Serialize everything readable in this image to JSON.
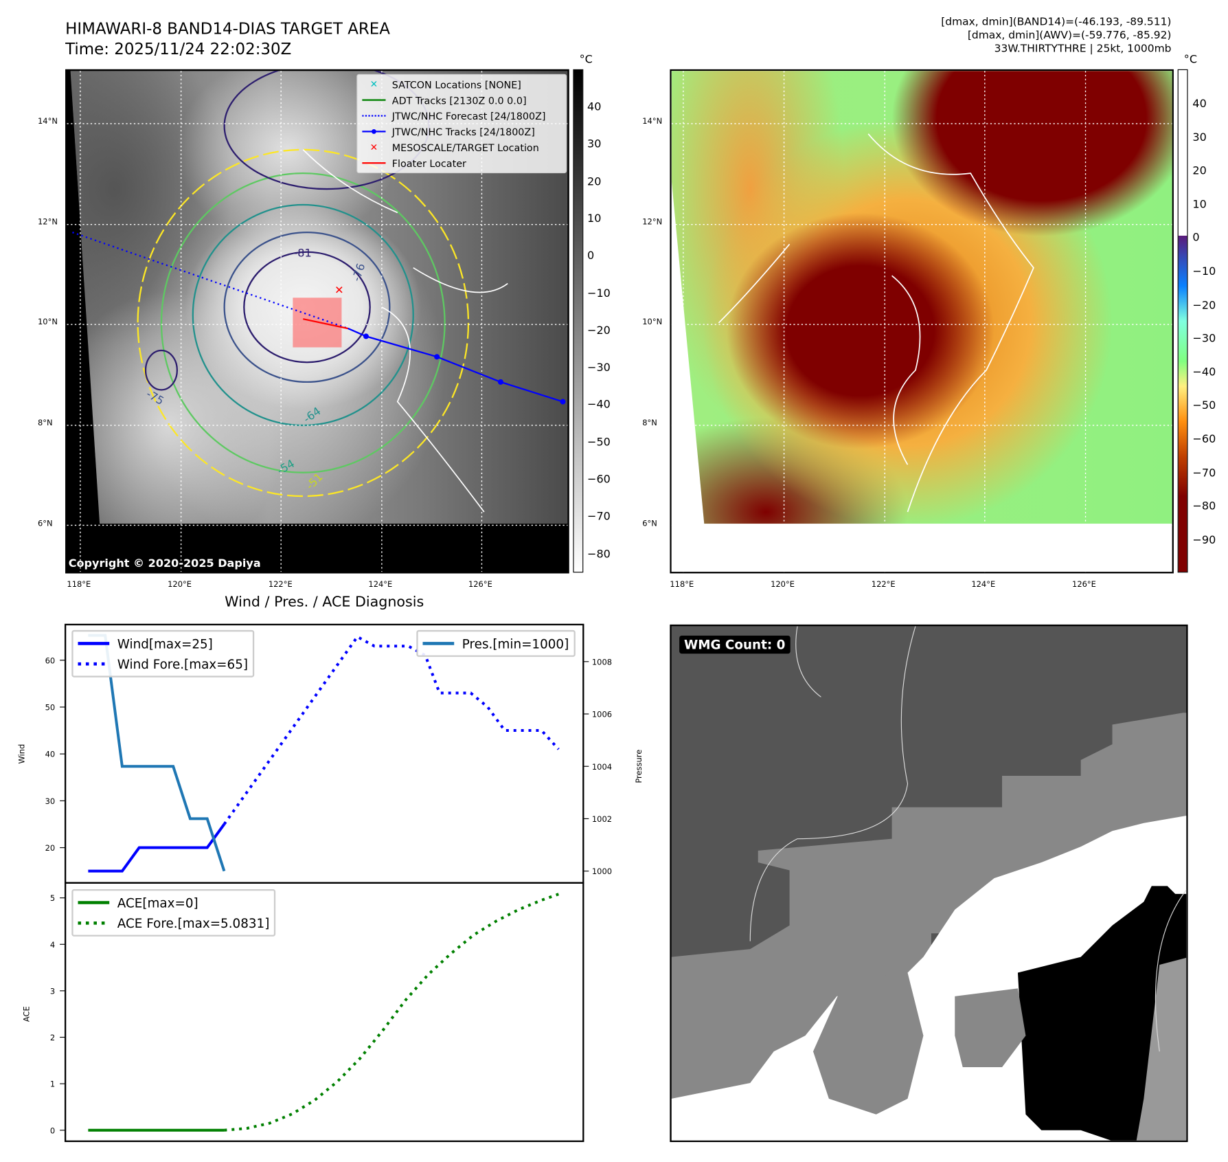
{
  "header": {
    "title": "HIMAWARI-8 BAND14-DIAS TARGET AREA",
    "time": "Time: 2025/11/24 22:02:30Z",
    "stats_band14": "[dmax, dmin](BAND14)=(-46.193, -89.511)",
    "stats_awv": "[dmax, dmin](AWV)=(-59.776, -85.92)",
    "storm_info": "33W.THIRTYTHRE | 25kt, 1000mb"
  },
  "maps": {
    "lat_labels": [
      "14°N",
      "12°N",
      "10°N",
      "8°N",
      "6°N"
    ],
    "lon_labels": [
      "118°E",
      "120°E",
      "122°E",
      "124°E",
      "126°E"
    ],
    "unit": "°C",
    "copyright": "Copyright © 2020-2025 Dapiya",
    "left_colorbar_ticks": [
      "40",
      "30",
      "20",
      "10",
      "0",
      "−10",
      "−20",
      "−30",
      "−40",
      "−50",
      "−60",
      "−70",
      "−80"
    ],
    "right_colorbar_ticks": [
      "40",
      "30",
      "20",
      "10",
      "0",
      "−10",
      "−20",
      "−30",
      "−40",
      "−50",
      "−60",
      "−70",
      "−80",
      "−90"
    ],
    "contour_labels": [
      "-81",
      "-76",
      "-64",
      "-54",
      "-51",
      "-75"
    ],
    "legend": [
      {
        "label": "SATCON Locations [NONE]",
        "icon": "x-marker",
        "color": "#00bfbf"
      },
      {
        "label": "ADT Tracks [2130Z 0.0 0.0]",
        "icon": "solid-line",
        "color": "#008000"
      },
      {
        "label": "JTWC/NHC Forecast [24/1800Z]",
        "icon": "dotted-line",
        "color": "#0000ff"
      },
      {
        "label": "JTWC/NHC Tracks [24/1800Z]",
        "icon": "line-dot",
        "color": "#0000ff"
      },
      {
        "label": "MESOSCALE/TARGET Location",
        "icon": "x-marker",
        "color": "#ff0000"
      },
      {
        "label": "Floater Locater",
        "icon": "solid-line",
        "color": "#ff0000"
      }
    ]
  },
  "wmg": {
    "label": "WMG Count: 0"
  },
  "chart_data": [
    {
      "type": "line",
      "title": "Wind / Pres. / ACE Diagnosis",
      "ylabel": "Wind",
      "y2label": "Pressure",
      "ylim": [
        14,
        66
      ],
      "y2lim": [
        999.6,
        1009.2
      ],
      "yticks": [
        20,
        30,
        40,
        50,
        60
      ],
      "y2ticks": [
        1000,
        1002,
        1004,
        1006,
        1008
      ],
      "x_unit": "hours",
      "series": [
        {
          "name": "Wind[max=25]",
          "style": "solid",
          "color": "#0000ff",
          "axis": "left",
          "x": [
            0,
            6,
            12,
            18,
            24,
            30,
            36,
            42,
            48
          ],
          "values": [
            15,
            15,
            15,
            20,
            20,
            20,
            20,
            20,
            25
          ]
        },
        {
          "name": "Wind Fore.[max=65]",
          "style": "dotted",
          "color": "#0000ff",
          "axis": "left",
          "x": [
            48,
            95,
            101,
            113,
            119,
            124,
            135,
            141,
            147,
            160,
            166
          ],
          "values": [
            25,
            65,
            63,
            63,
            61,
            53,
            53,
            50,
            45,
            45,
            41
          ]
        },
        {
          "name": "Pres.[min=1000]",
          "style": "solid",
          "color": "#1f77b4",
          "axis": "right",
          "x": [
            0,
            6,
            12,
            30,
            36,
            42,
            48
          ],
          "values": [
            1009,
            1009,
            1004,
            1004,
            1002,
            1002,
            1000
          ]
        }
      ],
      "legend_left": [
        "Wind[max=25]",
        "Wind Fore.[max=65]"
      ],
      "legend_right": [
        "Pres.[min=1000]"
      ]
    },
    {
      "type": "line",
      "ylabel": "ACE",
      "ylim": [
        -0.25,
        5.3
      ],
      "yticks": [
        0,
        1,
        2,
        3,
        4,
        5
      ],
      "series": [
        {
          "name": "ACE[max=0]",
          "style": "solid",
          "color": "#008000",
          "x": [
            0,
            12,
            24,
            36,
            48
          ],
          "values": [
            0,
            0,
            0,
            0,
            0
          ]
        },
        {
          "name": "ACE Fore.[max=5.0831]",
          "style": "dotted",
          "color": "#008000",
          "x": [
            48,
            56,
            64,
            72,
            80,
            88,
            96,
            104,
            112,
            120,
            128,
            136,
            144,
            152,
            160,
            166
          ],
          "values": [
            0,
            0.04,
            0.15,
            0.35,
            0.65,
            1.05,
            1.55,
            2.15,
            2.8,
            3.35,
            3.8,
            4.2,
            4.5,
            4.75,
            4.95,
            5.08
          ]
        }
      ]
    }
  ]
}
